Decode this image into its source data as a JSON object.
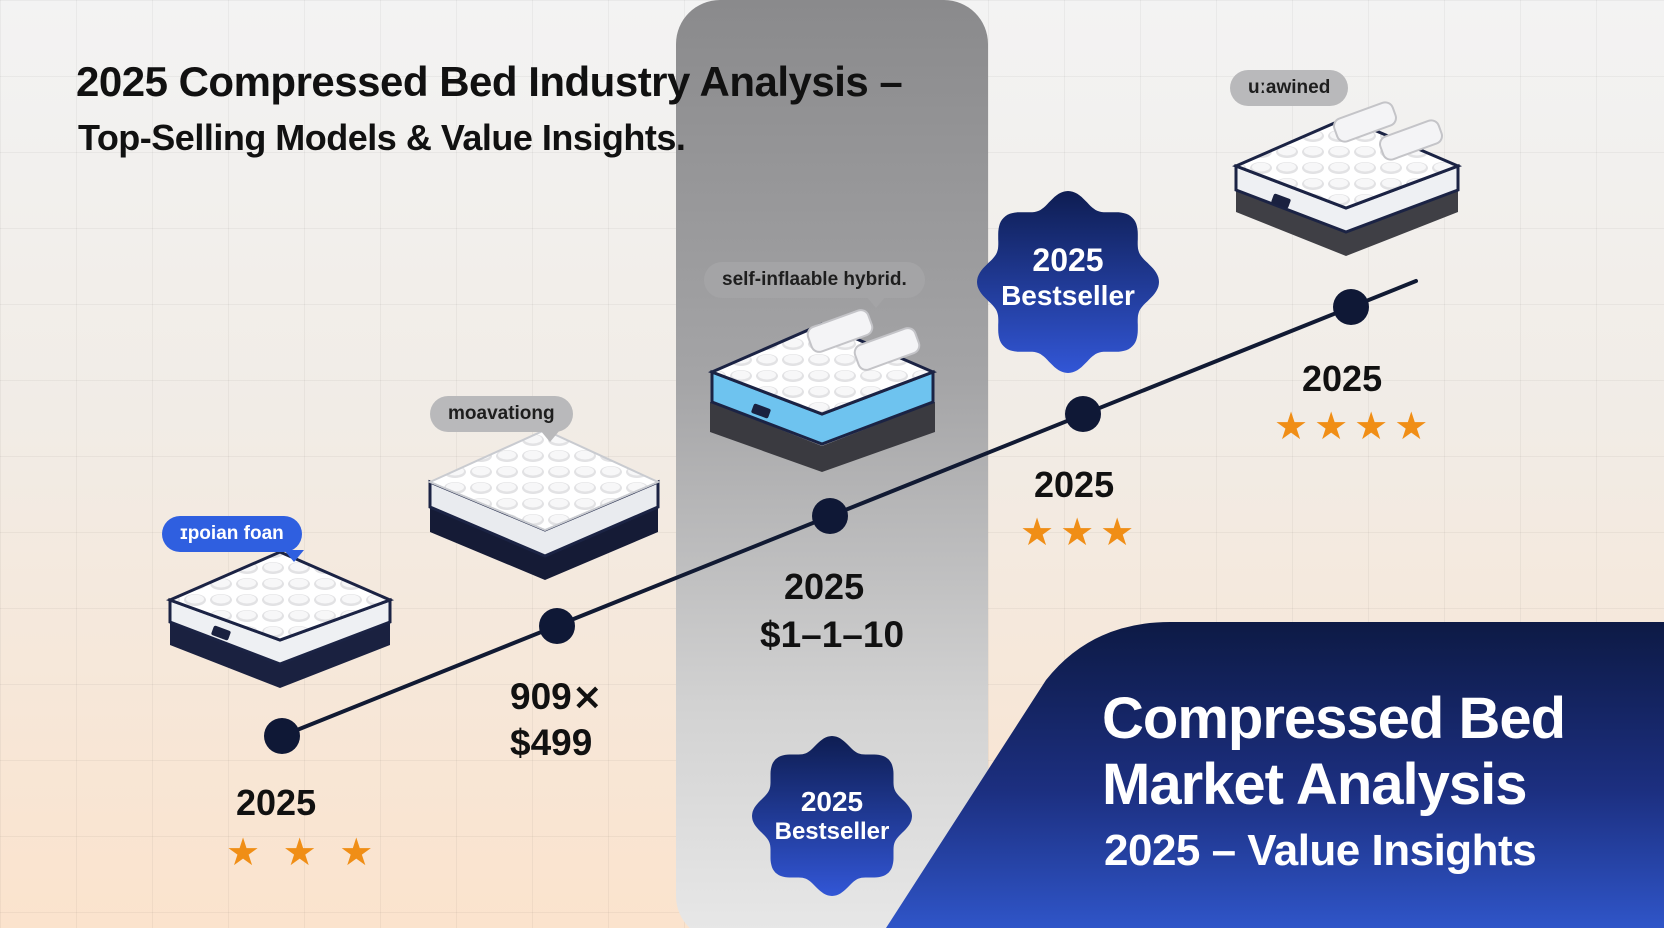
{
  "header": {
    "title": "2025 Compressed Bed Industry Analysis –",
    "subtitle": "Top-Selling Models & Value Insights."
  },
  "products": [
    {
      "tag": "ɪpoian foan",
      "year": "2025",
      "rating": 3,
      "stars": "★ ★ ★"
    },
    {
      "tag": "moavationg",
      "price_line1": "909⨯",
      "price_line2": "$499"
    },
    {
      "tag": "self-inflaable hybrid.",
      "year": "2025",
      "price": "$1–1–10"
    },
    {
      "year": "2025",
      "rating": 3,
      "stars": "★★★"
    },
    {
      "tag": "uːawined",
      "year": "2025",
      "rating": 4,
      "stars": "★★★★"
    }
  ],
  "badges": [
    {
      "line1": "2025",
      "line2": "Bestseller"
    },
    {
      "line1": "2025",
      "line2": "Bestseller"
    }
  ],
  "panel": {
    "title_line1": "Compressed Bed",
    "title_line2": "Market Analysis",
    "subtitle": "2025 – Value Insights"
  },
  "colors": {
    "navy": "#0d1a45",
    "accent_blue": "#2f5fe0",
    "star_orange": "#f08e16",
    "band_grey": "#8a8a8c"
  }
}
